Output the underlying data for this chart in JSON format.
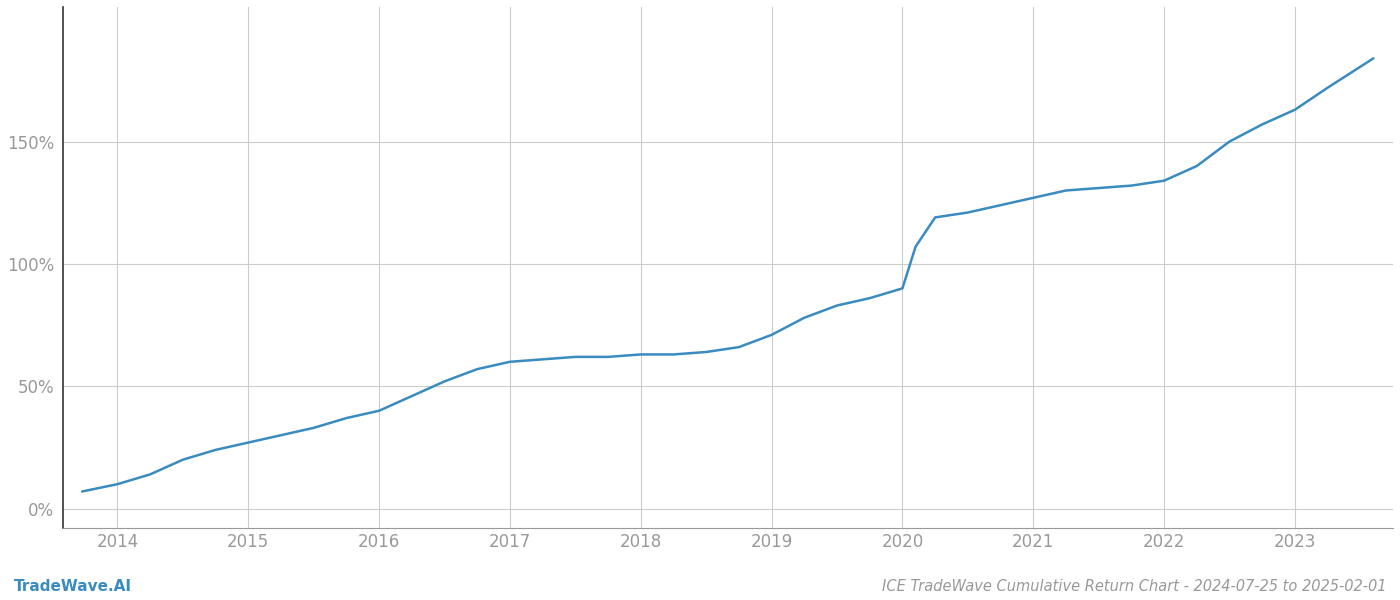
{
  "title": "ICE TradeWave Cumulative Return Chart - 2024-07-25 to 2025-02-01",
  "watermark": "TradeWave.AI",
  "line_color": "#3a8bbf",
  "background_color": "#ffffff",
  "grid_color": "#cccccc",
  "x_years": [
    2014,
    2015,
    2016,
    2017,
    2018,
    2019,
    2020,
    2021,
    2022,
    2023
  ],
  "x_values": [
    2013.73,
    2014.0,
    2014.25,
    2014.5,
    2014.75,
    2015.0,
    2015.25,
    2015.5,
    2015.75,
    2016.0,
    2016.25,
    2016.5,
    2016.75,
    2017.0,
    2017.25,
    2017.5,
    2017.75,
    2018.0,
    2018.25,
    2018.5,
    2018.75,
    2019.0,
    2019.25,
    2019.5,
    2019.75,
    2020.0,
    2020.1,
    2020.25,
    2020.5,
    2020.75,
    2021.0,
    2021.25,
    2021.5,
    2021.75,
    2022.0,
    2022.25,
    2022.5,
    2022.75,
    2023.0,
    2023.25,
    2023.6
  ],
  "y_values": [
    7,
    10,
    14,
    20,
    24,
    27,
    30,
    33,
    37,
    40,
    46,
    52,
    57,
    60,
    61,
    62,
    62,
    63,
    63,
    64,
    66,
    71,
    78,
    83,
    86,
    90,
    107,
    119,
    121,
    124,
    127,
    130,
    131,
    132,
    134,
    140,
    150,
    157,
    163,
    172,
    184
  ],
  "ylim": [
    -8,
    205
  ],
  "yticks": [
    0,
    50,
    100,
    150
  ],
  "xlim_left": 2013.58,
  "xlim_right": 2023.75,
  "title_fontsize": 10.5,
  "tick_fontsize": 12,
  "watermark_fontsize": 11,
  "axis_color": "#999999",
  "spine_color": "#333333"
}
